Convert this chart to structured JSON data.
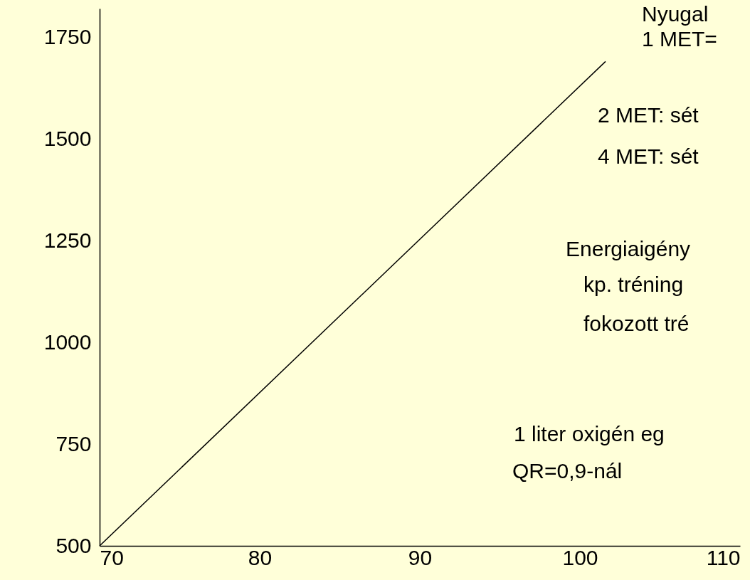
{
  "chart_data": {
    "type": "line",
    "x": [
      70,
      101.6
    ],
    "series": [
      {
        "color": "#000000",
        "values": [
          500,
          1690
        ]
      }
    ],
    "xlim": [
      70,
      110
    ],
    "xticks": [
      70,
      80,
      90,
      100,
      110
    ],
    "ylim": [
      500,
      1820
    ],
    "yticks": [
      500,
      750,
      1000,
      1250,
      1500,
      1750
    ],
    "grid": false,
    "annotations": [
      "Nyugal",
      "1 MET=",
      "2 MET: sét",
      "4 MET: sét",
      "Energiaigény",
      "kp. tréning",
      "fokozott tré",
      "1 liter oxigén eg",
      "QR=0,9-nál"
    ]
  }
}
